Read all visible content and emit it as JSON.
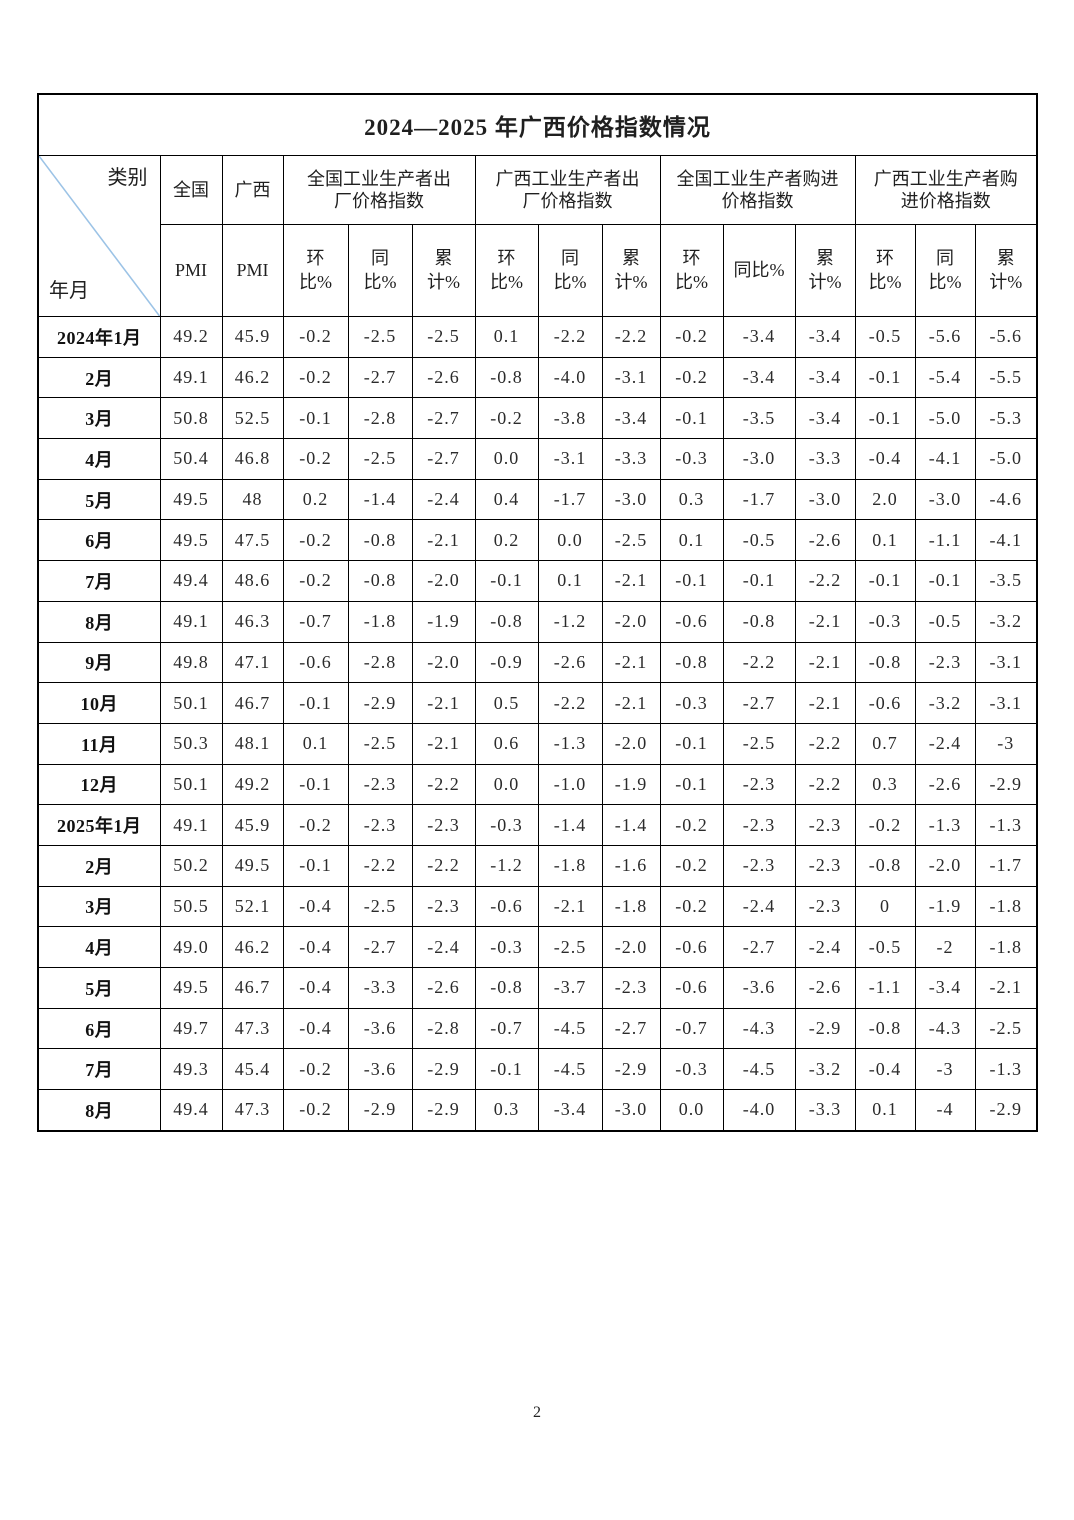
{
  "title": "2024—2025 年广西价格指数情况",
  "corner": {
    "category_label": "类别",
    "period_label": "年月"
  },
  "header": {
    "row1": [
      {
        "label": "全国"
      },
      {
        "label": "广西"
      },
      {
        "label": "全国工业生产者出\n厂价格指数"
      },
      {
        "label": "广西工业生产者出\n厂价格指数"
      },
      {
        "label": "全国工业生产者购进\n价格指数"
      },
      {
        "label": "广西工业生产者购\n进价格指数"
      }
    ],
    "row2": [
      "PMI",
      "PMI",
      "环\n比%",
      "同\n比%",
      "累\n计%",
      "环\n比%",
      "同\n比%",
      "累\n计%",
      "环\n比%",
      "同比%",
      "累\n计%",
      "环\n比%",
      "同\n比%",
      "累\n计%"
    ]
  },
  "rows": [
    {
      "label": "2024年1月",
      "values": [
        "49.2",
        "45.9",
        "-0.2",
        "-2.5",
        "-2.5",
        "0.1",
        "-2.2",
        "-2.2",
        "-0.2",
        "-3.4",
        "-3.4",
        "-0.5",
        "-5.6",
        "-5.6"
      ]
    },
    {
      "label": "2月",
      "values": [
        "49.1",
        "46.2",
        "-0.2",
        "-2.7",
        "-2.6",
        "-0.8",
        "-4.0",
        "-3.1",
        "-0.2",
        "-3.4",
        "-3.4",
        "-0.1",
        "-5.4",
        "-5.5"
      ]
    },
    {
      "label": "3月",
      "values": [
        "50.8",
        "52.5",
        "-0.1",
        "-2.8",
        "-2.7",
        "-0.2",
        "-3.8",
        "-3.4",
        "-0.1",
        "-3.5",
        "-3.4",
        "-0.1",
        "-5.0",
        "-5.3"
      ]
    },
    {
      "label": "4月",
      "values": [
        "50.4",
        "46.8",
        "-0.2",
        "-2.5",
        "-2.7",
        "0.0",
        "-3.1",
        "-3.3",
        "-0.3",
        "-3.0",
        "-3.3",
        "-0.4",
        "-4.1",
        "-5.0"
      ]
    },
    {
      "label": "5月",
      "values": [
        "49.5",
        "48",
        "0.2",
        "-1.4",
        "-2.4",
        "0.4",
        "-1.7",
        "-3.0",
        "0.3",
        "-1.7",
        "-3.0",
        "2.0",
        "-3.0",
        "-4.6"
      ]
    },
    {
      "label": "6月",
      "values": [
        "49.5",
        "47.5",
        "-0.2",
        "-0.8",
        "-2.1",
        "0.2",
        "0.0",
        "-2.5",
        "0.1",
        "-0.5",
        "-2.6",
        "0.1",
        "-1.1",
        "-4.1"
      ]
    },
    {
      "label": "7月",
      "values": [
        "49.4",
        "48.6",
        "-0.2",
        "-0.8",
        "-2.0",
        "-0.1",
        "0.1",
        "-2.1",
        "-0.1",
        "-0.1",
        "-2.2",
        "-0.1",
        "-0.1",
        "-3.5"
      ]
    },
    {
      "label": "8月",
      "values": [
        "49.1",
        "46.3",
        "-0.7",
        "-1.8",
        "-1.9",
        "-0.8",
        "-1.2",
        "-2.0",
        "-0.6",
        "-0.8",
        "-2.1",
        "-0.3",
        "-0.5",
        "-3.2"
      ]
    },
    {
      "label": "9月",
      "values": [
        "49.8",
        "47.1",
        "-0.6",
        "-2.8",
        "-2.0",
        "-0.9",
        "-2.6",
        "-2.1",
        "-0.8",
        "-2.2",
        "-2.1",
        "-0.8",
        "-2.3",
        "-3.1"
      ]
    },
    {
      "label": "10月",
      "values": [
        "50.1",
        "46.7",
        "-0.1",
        "-2.9",
        "-2.1",
        "0.5",
        "-2.2",
        "-2.1",
        "-0.3",
        "-2.7",
        "-2.1",
        "-0.6",
        "-3.2",
        "-3.1"
      ]
    },
    {
      "label": "11月",
      "values": [
        "50.3",
        "48.1",
        "0.1",
        "-2.5",
        "-2.1",
        "0.6",
        "-1.3",
        "-2.0",
        "-0.1",
        "-2.5",
        "-2.2",
        "0.7",
        "-2.4",
        "-3"
      ]
    },
    {
      "label": "12月",
      "values": [
        "50.1",
        "49.2",
        "-0.1",
        "-2.3",
        "-2.2",
        "0.0",
        "-1.0",
        "-1.9",
        "-0.1",
        "-2.3",
        "-2.2",
        "0.3",
        "-2.6",
        "-2.9"
      ]
    },
    {
      "label": "2025年1月",
      "values": [
        "49.1",
        "45.9",
        "-0.2",
        "-2.3",
        "-2.3",
        "-0.3",
        "-1.4",
        "-1.4",
        "-0.2",
        "-2.3",
        "-2.3",
        "-0.2",
        "-1.3",
        "-1.3"
      ]
    },
    {
      "label": "2月",
      "values": [
        "50.2",
        "49.5",
        "-0.1",
        "-2.2",
        "-2.2",
        "-1.2",
        "-1.8",
        "-1.6",
        "-0.2",
        "-2.3",
        "-2.3",
        "-0.8",
        "-2.0",
        "-1.7"
      ]
    },
    {
      "label": "3月",
      "values": [
        "50.5",
        "52.1",
        "-0.4",
        "-2.5",
        "-2.3",
        "-0.6",
        "-2.1",
        "-1.8",
        "-0.2",
        "-2.4",
        "-2.3",
        "0",
        "-1.9",
        "-1.8"
      ]
    },
    {
      "label": "4月",
      "values": [
        "49.0",
        "46.2",
        "-0.4",
        "-2.7",
        "-2.4",
        "-0.3",
        "-2.5",
        "-2.0",
        "-0.6",
        "-2.7",
        "-2.4",
        "-0.5",
        "-2",
        "-1.8"
      ]
    },
    {
      "label": "5月",
      "values": [
        "49.5",
        "46.7",
        "-0.4",
        "-3.3",
        "-2.6",
        "-0.8",
        "-3.7",
        "-2.3",
        "-0.6",
        "-3.6",
        "-2.6",
        "-1.1",
        "-3.4",
        "-2.1"
      ]
    },
    {
      "label": "6月",
      "values": [
        "49.7",
        "47.3",
        "-0.4",
        "-3.6",
        "-2.8",
        "-0.7",
        "-4.5",
        "-2.7",
        "-0.7",
        "-4.3",
        "-2.9",
        "-0.8",
        "-4.3",
        "-2.5"
      ]
    },
    {
      "label": "7月",
      "values": [
        "49.3",
        "45.4",
        "-0.2",
        "-3.6",
        "-2.9",
        "-0.1",
        "-4.5",
        "-2.9",
        "-0.3",
        "-4.5",
        "-3.2",
        "-0.4",
        "-3",
        "-1.3"
      ]
    },
    {
      "label": "8月",
      "values": [
        "49.4",
        "47.3",
        "-0.2",
        "-2.9",
        "-2.9",
        "0.3",
        "-3.4",
        "-3.0",
        "0.0",
        "-4.0",
        "-3.3",
        "0.1",
        "-4",
        "-2.9"
      ]
    }
  ],
  "page_number": "2",
  "colors": {
    "diagonal_line": "#9cc3e6",
    "border": "#000000",
    "text": "#2b2b2b"
  }
}
